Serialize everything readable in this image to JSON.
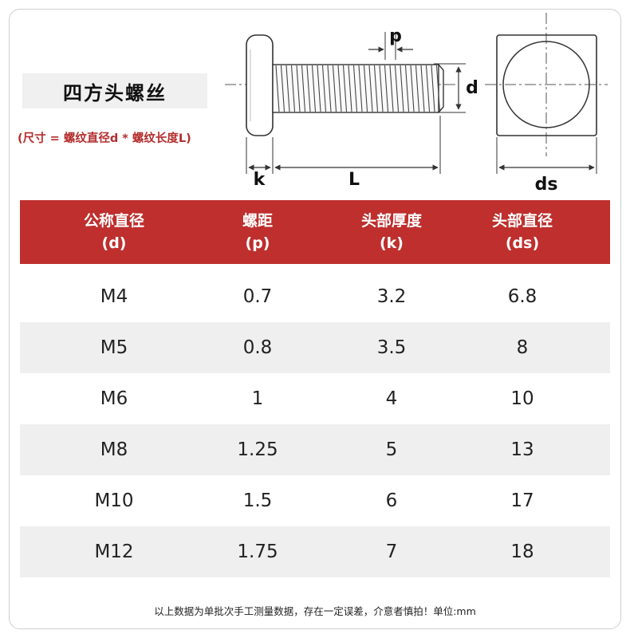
{
  "product": {
    "title": "四方头螺丝",
    "formula": "(尺寸 = 螺纹直径d * 螺纹长度L)"
  },
  "diagram": {
    "label_p": "p",
    "label_d": "d",
    "label_k": "k",
    "label_L": "L",
    "label_ds": "ds"
  },
  "table": {
    "headers": [
      {
        "line1": "公称直径",
        "line2": "(d)"
      },
      {
        "line1": "螺距",
        "line2": "(p)"
      },
      {
        "line1": "头部厚度",
        "line2": "(k)"
      },
      {
        "line1": "头部直径",
        "line2": "(ds)"
      }
    ],
    "rows": [
      [
        "M4",
        "0.7",
        "3.2",
        "6.8"
      ],
      [
        "M5",
        "0.8",
        "3.5",
        "8"
      ],
      [
        "M6",
        "1",
        "4",
        "10"
      ],
      [
        "M8",
        "1.25",
        "5",
        "13"
      ],
      [
        "M10",
        "1.5",
        "6",
        "17"
      ],
      [
        "M12",
        "1.75",
        "7",
        "18"
      ]
    ]
  },
  "footer": "以上数据为单批次手工测量数据，存在一定误差，介意者慎拍！单位:mm",
  "colors": {
    "header_bg": "#be2f2d",
    "formula_text": "#b42d2d",
    "row_alt": "#efefef"
  }
}
